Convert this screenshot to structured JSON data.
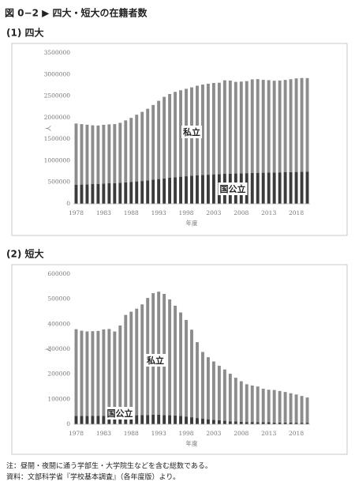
{
  "page_title": "図 0−2 ▶ 四大・短大の在籍者数",
  "notes": [
    "注：昼間・夜間に通う学部生・大学院生などを含む総数である。",
    "資料：文部科学省『学校基本調査』（各年度版）より。"
  ],
  "chart_data": [
    {
      "type": "bar",
      "stacked": true,
      "title": "(1) 四大",
      "x_label": "年度",
      "y_label": "人",
      "categories": [
        "1978",
        null,
        null,
        null,
        null,
        "1983",
        null,
        null,
        null,
        null,
        "1988",
        null,
        null,
        null,
        null,
        "1993",
        null,
        null,
        null,
        null,
        "1998",
        null,
        null,
        null,
        null,
        "2003",
        null,
        null,
        null,
        null,
        "2008",
        null,
        null,
        null,
        null,
        "2013",
        null,
        null,
        null,
        null,
        "2018",
        null,
        null
      ],
      "series": [
        {
          "name": "国公立",
          "color": "#3b3b3b",
          "values": [
            440000,
            447000,
            452000,
            458000,
            464000,
            470000,
            476000,
            482000,
            490000,
            500000,
            510000,
            520000,
            530000,
            545000,
            560000,
            575000,
            590000,
            605000,
            618000,
            630000,
            640000,
            650000,
            660000,
            668000,
            676000,
            684000,
            690000,
            696000,
            700000,
            704000,
            708000,
            712000,
            716000,
            720000,
            722000,
            725000,
            728000,
            730000,
            733000,
            736000,
            740000,
            744000,
            748000
          ]
        },
        {
          "name": "私立",
          "color": "#8c8c8c",
          "values": [
            1422000,
            1402000,
            1383000,
            1364000,
            1353000,
            1364000,
            1368000,
            1367000,
            1389000,
            1435000,
            1484000,
            1547000,
            1603000,
            1660000,
            1733000,
            1815000,
            1892000,
            1942000,
            1979000,
            2004000,
            2028000,
            2051000,
            2080000,
            2098000,
            2110000,
            2120000,
            2119000,
            2169000,
            2159000,
            2125000,
            2128000,
            2134000,
            2171000,
            2173000,
            2154000,
            2143000,
            2127000,
            2130000,
            2141000,
            2155000,
            2169000,
            2175000,
            2168000
          ]
        }
      ],
      "ylim": [
        0,
        3500000
      ],
      "yticks": [
        0,
        500000,
        1000000,
        1500000,
        2000000,
        2500000,
        3000000,
        3500000
      ],
      "grid": false
    },
    {
      "type": "bar",
      "stacked": true,
      "title": "(2) 短大",
      "x_label": "年度",
      "y_label": "人",
      "categories": [
        "1978",
        null,
        null,
        null,
        null,
        "1983",
        null,
        null,
        null,
        null,
        "1988",
        null,
        null,
        null,
        null,
        "1993",
        null,
        null,
        null,
        null,
        "1998",
        null,
        null,
        null,
        null,
        "2003",
        null,
        null,
        null,
        null,
        "2008",
        null,
        null,
        null,
        null,
        "2013",
        null,
        null,
        null,
        null,
        "2018",
        null,
        null
      ],
      "series": [
        {
          "name": "国公立",
          "color": "#3b3b3b",
          "values": [
            33000,
            33000,
            33000,
            34000,
            34000,
            34000,
            34000,
            35000,
            35000,
            36000,
            36000,
            36000,
            37000,
            37000,
            38000,
            38000,
            37000,
            36000,
            35000,
            33000,
            31000,
            28000,
            25000,
            22000,
            20000,
            18000,
            16000,
            14000,
            12000,
            11000,
            10000,
            9000,
            9000,
            8000,
            8000,
            8000,
            7000,
            7000,
            7000,
            7000,
            6000,
            6000,
            6000
          ]
        },
        {
          "name": "私立",
          "color": "#8c8c8c",
          "values": [
            347000,
            341000,
            338000,
            338000,
            339000,
            345000,
            347000,
            336000,
            360000,
            401000,
            414000,
            426000,
            442000,
            468000,
            486000,
            492000,
            484000,
            463000,
            439000,
            414000,
            386000,
            350000,
            303000,
            267000,
            248000,
            233000,
            218000,
            205000,
            190000,
            175000,
            162000,
            151000,
            146000,
            143000,
            134000,
            130000,
            130000,
            126000,
            122000,
            117000,
            113000,
            107000,
            101000
          ]
        }
      ],
      "ylim": [
        0,
        600000
      ],
      "yticks": [
        0,
        100000,
        200000,
        300000,
        400000,
        500000,
        600000
      ],
      "grid": false
    }
  ]
}
